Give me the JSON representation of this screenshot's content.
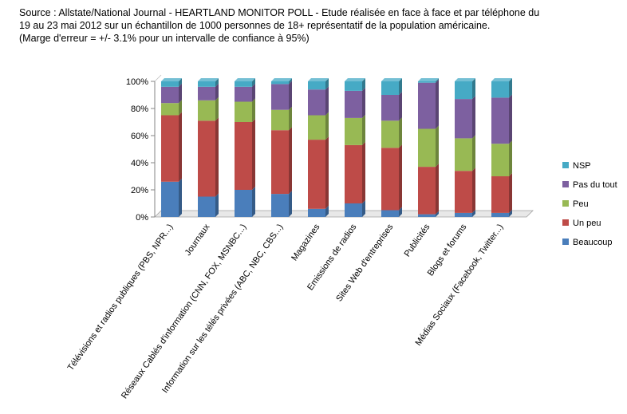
{
  "header": {
    "line1": "Source :  Allstate/National Journal - HEARTLAND MONITOR POLL - Etude réalisée en face à face et par téléphone du",
    "line2": "19 au 23 mai 2012  sur un échantillon de 1000  personnes de 18+ représentatif de la population américaine.",
    "line3": "(Marge d'erreur = +/- 3.1% pour un intervalle de confiance à 95%)"
  },
  "chart_data": {
    "type": "bar",
    "stacked": true,
    "percent": true,
    "three_d": true,
    "title": "",
    "xlabel": "",
    "ylabel": "",
    "ylim": [
      0,
      100
    ],
    "yticks": [
      "0%",
      "20%",
      "40%",
      "60%",
      "80%",
      "100%"
    ],
    "legend_position": "right",
    "grid": false,
    "categories": [
      "Télévisions et radios publiques (PBS, NPR...)",
      "Journaux",
      "Réseaux Cablés d'information (CNN, FOX, MSNBC...)",
      "Information sur les télés privées (ABC, NBC, CBS...)",
      "Magazines",
      "Emissions de radios",
      "Sites Web d'entreprises",
      "Publicités",
      "Blogs et forums",
      "Médias Sociaux (Facebook, Twitter...)"
    ],
    "series": [
      {
        "name": "Beaucoup",
        "color": "#4A7EBB",
        "values": [
          26,
          15,
          20,
          17,
          6,
          10,
          5,
          2,
          3,
          3
        ]
      },
      {
        "name": "Un peu",
        "color": "#BE4B48",
        "values": [
          49,
          56,
          50,
          47,
          51,
          43,
          46,
          35,
          31,
          27
        ]
      },
      {
        "name": "Peu",
        "color": "#98B954",
        "values": [
          9,
          15,
          15,
          15,
          18,
          20,
          20,
          28,
          24,
          24
        ]
      },
      {
        "name": "Pas du tout",
        "color": "#7D60A0",
        "values": [
          12,
          10,
          11,
          19,
          19,
          20,
          19,
          34,
          29,
          34
        ]
      },
      {
        "name": "NSP",
        "color": "#46AAC5",
        "values": [
          4,
          4,
          4,
          2,
          6,
          7,
          10,
          1,
          13,
          12
        ]
      }
    ]
  }
}
